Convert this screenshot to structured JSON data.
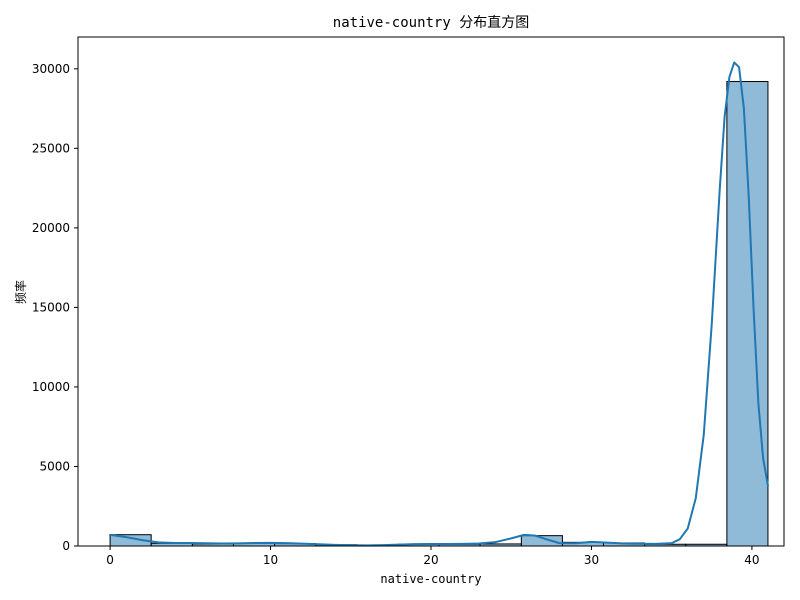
{
  "chart_data": {
    "type": "bar",
    "title": "native-country 分布直方图",
    "xlabel": "native-country",
    "ylabel": "频率",
    "xlim": [
      -2,
      42
    ],
    "ylim": [
      0,
      32000
    ],
    "xticks": [
      0,
      10,
      20,
      30,
      40
    ],
    "yticks": [
      0,
      5000,
      10000,
      15000,
      20000,
      25000,
      30000
    ],
    "grid": false,
    "bar_color": "#1f77b4",
    "bar_opacity": 0.5,
    "kde_color": "#1f77b4",
    "bins": [
      {
        "x0": 0.0,
        "x1": 2.56,
        "count": 710
      },
      {
        "x0": 2.56,
        "x1": 5.13,
        "count": 170
      },
      {
        "x0": 5.13,
        "x1": 7.69,
        "count": 130
      },
      {
        "x0": 7.69,
        "x1": 10.25,
        "count": 190
      },
      {
        "x0": 10.25,
        "x1": 12.81,
        "count": 150
      },
      {
        "x0": 12.81,
        "x1": 15.38,
        "count": 80
      },
      {
        "x0": 15.38,
        "x1": 17.94,
        "count": 40
      },
      {
        "x0": 17.94,
        "x1": 20.5,
        "count": 110
      },
      {
        "x0": 20.5,
        "x1": 23.06,
        "count": 110
      },
      {
        "x0": 23.06,
        "x1": 25.63,
        "count": 130
      },
      {
        "x0": 25.63,
        "x1": 28.19,
        "count": 650
      },
      {
        "x0": 28.19,
        "x1": 30.75,
        "count": 230
      },
      {
        "x0": 30.75,
        "x1": 33.31,
        "count": 190
      },
      {
        "x0": 33.31,
        "x1": 35.88,
        "count": 110
      },
      {
        "x0": 35.88,
        "x1": 38.44,
        "count": 110
      },
      {
        "x0": 38.44,
        "x1": 41.0,
        "count": 29200
      }
    ],
    "kde": {
      "x": [
        0,
        1,
        2,
        3,
        4,
        5,
        6,
        7,
        8,
        9,
        10,
        11,
        12,
        13,
        14,
        15,
        16,
        17,
        18,
        19,
        20,
        21,
        22,
        23,
        24,
        25,
        25.8,
        26.5,
        27.2,
        28,
        29,
        30,
        31,
        32,
        33,
        34,
        35,
        35.5,
        36,
        36.5,
        37,
        37.5,
        38,
        38.3,
        38.6,
        38.9,
        39.2,
        39.5,
        39.8,
        40.1,
        40.4,
        40.7,
        41
      ],
      "y": [
        700,
        560,
        370,
        230,
        190,
        190,
        170,
        160,
        165,
        185,
        195,
        180,
        150,
        110,
        70,
        45,
        40,
        55,
        90,
        120,
        125,
        125,
        135,
        160,
        240,
        480,
        700,
        650,
        420,
        180,
        170,
        260,
        210,
        160,
        140,
        130,
        180,
        420,
        1100,
        3000,
        7000,
        14000,
        22500,
        27000,
        29500,
        30400,
        30100,
        27500,
        22000,
        15000,
        9000,
        5500,
        3800
      ]
    }
  }
}
